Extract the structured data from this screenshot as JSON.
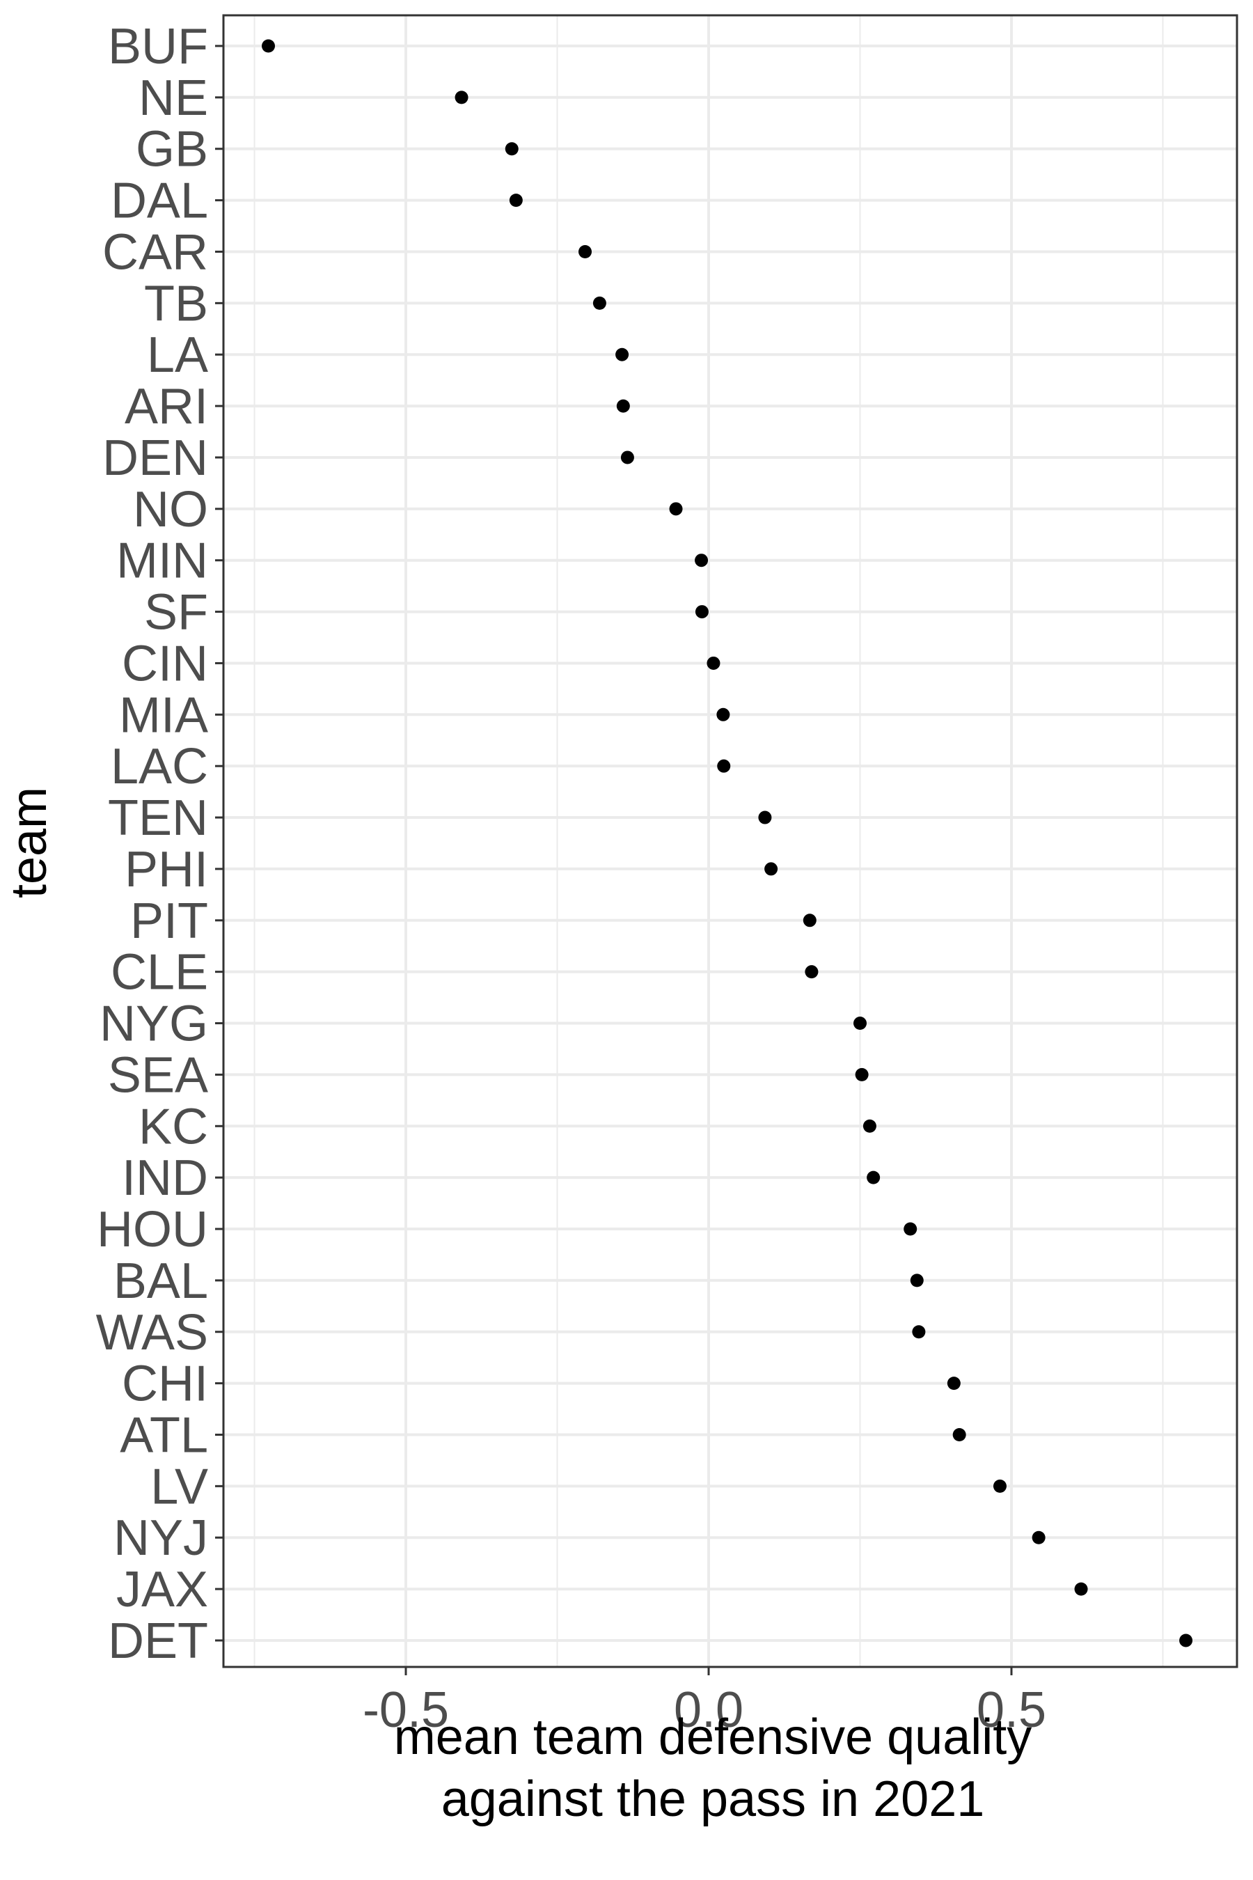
{
  "chart_data": {
    "type": "scatter",
    "title": "",
    "xlabel": [
      "mean team defensive quality",
      "against the pass in 2021"
    ],
    "ylabel": "team",
    "xlim": [
      -0.78,
      0.82
    ],
    "x_ticks": [
      -0.5,
      0.0,
      0.5
    ],
    "x_tick_labels": [
      "-0.5",
      "0.0",
      "0.5"
    ],
    "x_minor_ticks": [
      -0.75,
      -0.25,
      0.25,
      0.75
    ],
    "grid": true,
    "legend": "none",
    "point_color": "#000000",
    "categories": [
      "BUF",
      "NE",
      "GB",
      "DAL",
      "CAR",
      "TB",
      "LA",
      "ARI",
      "DEN",
      "NO",
      "MIN",
      "SF",
      "CIN",
      "MIA",
      "LAC",
      "TEN",
      "PHI",
      "PIT",
      "CLE",
      "NYG",
      "SEA",
      "KC",
      "IND",
      "HOU",
      "BAL",
      "WAS",
      "CHI",
      "ATL",
      "LV",
      "NYJ",
      "JAX",
      "DET"
    ],
    "values": [
      -0.727,
      -0.408,
      -0.325,
      -0.318,
      -0.204,
      -0.18,
      -0.143,
      -0.141,
      -0.134,
      -0.054,
      -0.012,
      -0.011,
      0.008,
      0.024,
      0.025,
      0.093,
      0.103,
      0.167,
      0.17,
      0.25,
      0.253,
      0.266,
      0.272,
      0.333,
      0.344,
      0.347,
      0.405,
      0.414,
      0.481,
      0.545,
      0.615,
      0.788
    ]
  }
}
